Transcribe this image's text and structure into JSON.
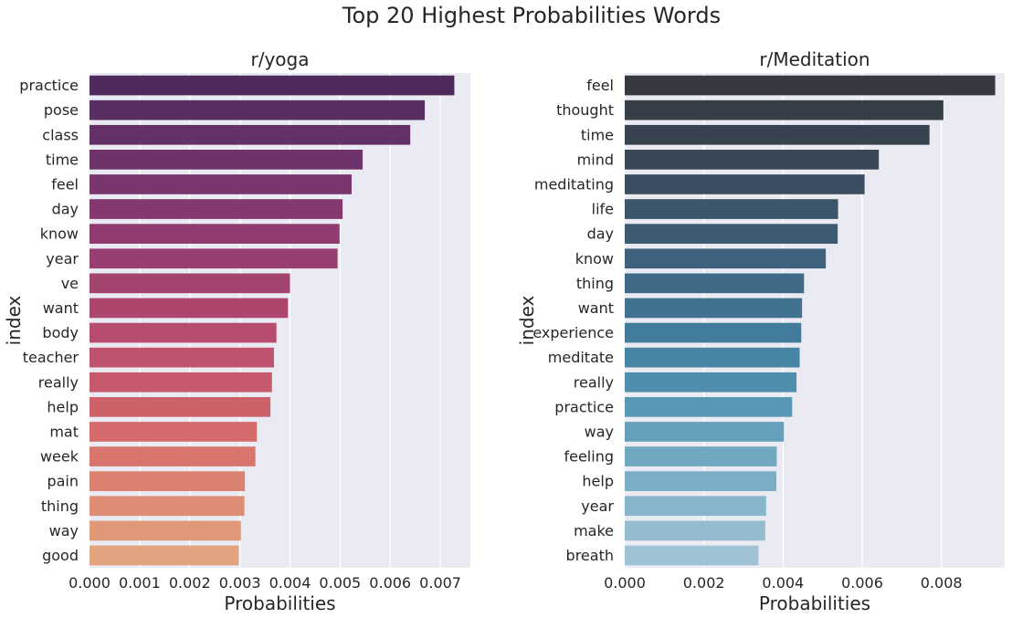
{
  "title": "Top 20 Highest Probabilities Words",
  "chart_data": [
    {
      "type": "bar",
      "orientation": "horizontal",
      "title": "r/yoga",
      "xlabel": "Probabilities",
      "ylabel": "index",
      "xlim": [
        0,
        0.0076
      ],
      "xticks": [
        "0.000",
        "0.001",
        "0.002",
        "0.003",
        "0.004",
        "0.005",
        "0.006",
        "0.007"
      ],
      "grid": true,
      "palette": "flare (dark purple to peach)",
      "colors": [
        "#4f2a5c",
        "#5a2d63",
        "#652f68",
        "#6f336b",
        "#7a356d",
        "#84386e",
        "#8f3b6f",
        "#993e70",
        "#a34370",
        "#ac466f",
        "#b64d6e",
        "#bf536d",
        "#c6596c",
        "#cd616a",
        "#d46b6a",
        "#d8756c",
        "#db816f",
        "#de8c74",
        "#e09879",
        "#e2a380"
      ],
      "categories": [
        "practice",
        "pose",
        "class",
        "time",
        "feel",
        "day",
        "know",
        "year",
        "ve",
        "want",
        "body",
        "teacher",
        "really",
        "help",
        "mat",
        "week",
        "pain",
        "thing",
        "way",
        "good"
      ],
      "values": [
        0.00728,
        0.00669,
        0.0064,
        0.00545,
        0.00523,
        0.00505,
        0.00499,
        0.00495,
        0.004,
        0.00396,
        0.00373,
        0.00368,
        0.00364,
        0.00361,
        0.00334,
        0.00331,
        0.0031,
        0.00309,
        0.00302,
        0.00298
      ]
    },
    {
      "type": "bar",
      "orientation": "horizontal",
      "title": "r/Meditation",
      "xlabel": "Probabilities",
      "ylabel": "index",
      "xlim": [
        0,
        0.0096
      ],
      "xticks": [
        "0.000",
        "0.002",
        "0.004",
        "0.006",
        "0.008"
      ],
      "grid": true,
      "palette": "Blues_d (dark slate to light blue)",
      "colors": [
        "#353a40",
        "#363e47",
        "#37434f",
        "#394857",
        "#3a4e60",
        "#3c5569",
        "#3d5b73",
        "#3e627d",
        "#3f6a87",
        "#417391",
        "#437c9b",
        "#4885a5",
        "#508ead",
        "#5a97b4",
        "#659fbb",
        "#70a7c1",
        "#7baec6",
        "#87b5cb",
        "#93bcd0",
        "#9fc3d5"
      ],
      "categories": [
        "feel",
        "thought",
        "time",
        "mind",
        "meditating",
        "life",
        "day",
        "know",
        "thing",
        "want",
        "experience",
        "meditate",
        "really",
        "practice",
        "way",
        "feeling",
        "help",
        "year",
        "make",
        "breath"
      ],
      "values": [
        0.00936,
        0.00805,
        0.0077,
        0.00642,
        0.00606,
        0.00539,
        0.00538,
        0.00508,
        0.00453,
        0.00448,
        0.00446,
        0.00442,
        0.00434,
        0.00423,
        0.00402,
        0.00384,
        0.00383,
        0.00357,
        0.00355,
        0.00338
      ]
    }
  ]
}
